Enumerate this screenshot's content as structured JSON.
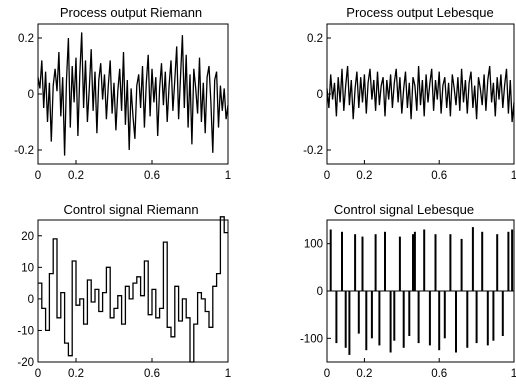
{
  "chart_data": [
    {
      "id": "process_riemann",
      "type": "line",
      "title": "Process output Riemann",
      "xlim": [
        0,
        1
      ],
      "ylim": [
        -0.25,
        0.25
      ],
      "xticks": [
        0,
        0.2,
        0.6,
        1
      ],
      "xtick_labels": [
        "0",
        "0.2",
        "0.6",
        "1"
      ],
      "yticks": [
        0.2,
        0,
        -0.2
      ],
      "ytick_labels": [
        "0.2",
        "0",
        "-0.2"
      ],
      "grid": false,
      "x": [
        0,
        0.01,
        0.02,
        0.03,
        0.04,
        0.05,
        0.06,
        0.07,
        0.08,
        0.09,
        0.1,
        0.11,
        0.12,
        0.13,
        0.14,
        0.15,
        0.16,
        0.17,
        0.18,
        0.19,
        0.2,
        0.21,
        0.22,
        0.23,
        0.24,
        0.25,
        0.26,
        0.27,
        0.28,
        0.29,
        0.3,
        0.31,
        0.32,
        0.33,
        0.34,
        0.35,
        0.36,
        0.37,
        0.38,
        0.39,
        0.4,
        0.41,
        0.42,
        0.43,
        0.44,
        0.45,
        0.46,
        0.47,
        0.48,
        0.49,
        0.5,
        0.51,
        0.52,
        0.53,
        0.54,
        0.55,
        0.56,
        0.57,
        0.58,
        0.59,
        0.6,
        0.61,
        0.62,
        0.63,
        0.64,
        0.65,
        0.66,
        0.67,
        0.68,
        0.69,
        0.7,
        0.71,
        0.72,
        0.73,
        0.74,
        0.75,
        0.76,
        0.77,
        0.78,
        0.79,
        0.8,
        0.81,
        0.82,
        0.83,
        0.84,
        0.85,
        0.86,
        0.87,
        0.88,
        0.89,
        0.9,
        0.91,
        0.92,
        0.93,
        0.94,
        0.95,
        0.96,
        0.97,
        0.98,
        0.99,
        1
      ],
      "y": [
        0.06,
        0.02,
        0.12,
        -0.05,
        0.08,
        -0.1,
        0.04,
        -0.17,
        0.03,
        0.09,
        0.01,
        0.15,
        -0.08,
        0.06,
        -0.22,
        0.05,
        0.2,
        -0.12,
        0.1,
        -0.03,
        0.13,
        -0.15,
        0.07,
        0.22,
        -0.05,
        0.12,
        -0.1,
        0.02,
        0.16,
        -0.06,
        0.08,
        -0.14,
        0.05,
        0.11,
        -0.02,
        0.07,
        -0.09,
        0.03,
        0.12,
        -0.07,
        0.04,
        -0.13,
        0.01,
        0.09,
        -0.06,
        0.15,
        -0.11,
        0.05,
        -0.2,
        0.02,
        -0.08,
        -0.16,
        0.03,
        0.07,
        -0.05,
        0.1,
        -0.12,
        0.04,
        0.14,
        -0.08,
        0.09,
        -0.03,
        0.06,
        -0.15,
        0.02,
        0.11,
        -0.04,
        0.08,
        -0.1,
        0.03,
        0.12,
        -0.06,
        0.05,
        0.17,
        -0.09,
        0.06,
        0.21,
        -0.05,
        0.14,
        -0.12,
        0.07,
        -0.18,
        0.09,
        0.02,
        -0.07,
        0.13,
        -0.1,
        0.04,
        -0.14,
        0.06,
        0.1,
        -0.03,
        -0.21,
        0.05,
        0.08,
        -0.12,
        0.03,
        -0.06,
        0.02,
        -0.09,
        -0.04
      ]
    },
    {
      "id": "process_lebesque",
      "type": "line",
      "title": "Process output Lebesque",
      "xlim": [
        0,
        1
      ],
      "ylim": [
        -0.25,
        0.25
      ],
      "xticks": [
        0,
        0.2,
        0.6,
        1
      ],
      "xtick_labels": [
        "0",
        "0.2",
        "0.6",
        "1"
      ],
      "yticks": [
        0.2,
        0,
        -0.2
      ],
      "ytick_labels": [
        "0.2",
        "0",
        "-0.2"
      ],
      "grid": false,
      "x": [
        0,
        0.01,
        0.02,
        0.03,
        0.04,
        0.05,
        0.06,
        0.07,
        0.08,
        0.09,
        0.1,
        0.11,
        0.12,
        0.13,
        0.14,
        0.15,
        0.16,
        0.17,
        0.18,
        0.19,
        0.2,
        0.21,
        0.22,
        0.23,
        0.24,
        0.25,
        0.26,
        0.27,
        0.28,
        0.29,
        0.3,
        0.31,
        0.32,
        0.33,
        0.34,
        0.35,
        0.36,
        0.37,
        0.38,
        0.39,
        0.4,
        0.41,
        0.42,
        0.43,
        0.44,
        0.45,
        0.46,
        0.47,
        0.48,
        0.49,
        0.5,
        0.51,
        0.52,
        0.53,
        0.54,
        0.55,
        0.56,
        0.57,
        0.58,
        0.59,
        0.6,
        0.61,
        0.62,
        0.63,
        0.64,
        0.65,
        0.66,
        0.67,
        0.68,
        0.69,
        0.7,
        0.71,
        0.72,
        0.73,
        0.74,
        0.75,
        0.76,
        0.77,
        0.78,
        0.79,
        0.8,
        0.81,
        0.82,
        0.83,
        0.84,
        0.85,
        0.86,
        0.87,
        0.88,
        0.89,
        0.9,
        0.91,
        0.92,
        0.93,
        0.94,
        0.95,
        0.96,
        0.97,
        0.98,
        0.99,
        1
      ],
      "y": [
        0.02,
        -0.05,
        0.07,
        -0.02,
        0.04,
        -0.08,
        0.06,
        -0.03,
        0.09,
        -0.06,
        0.03,
        0.1,
        -0.04,
        0.05,
        -0.09,
        0.02,
        0.08,
        -0.05,
        0.06,
        -0.03,
        0.07,
        -0.07,
        0.04,
        0.09,
        -0.02,
        0.05,
        -0.06,
        0.08,
        -0.04,
        0.03,
        0.06,
        -0.08,
        0.05,
        -0.02,
        0.07,
        -0.05,
        0.04,
        0.09,
        -0.03,
        0.06,
        -0.07,
        0.02,
        0.08,
        -0.05,
        0.04,
        -0.09,
        0.06,
        0.03,
        -0.06,
        0.1,
        -0.04,
        0.05,
        -0.08,
        0.07,
        -0.03,
        0.04,
        0.09,
        -0.06,
        0.05,
        -0.02,
        0.08,
        -0.07,
        0.03,
        0.06,
        -0.05,
        0.04,
        -0.08,
        0.07,
        0.02,
        -0.04,
        0.06,
        -0.06,
        0.09,
        -0.03,
        0.05,
        -0.07,
        0.04,
        0.08,
        -0.05,
        0.03,
        -0.09,
        0.06,
        0.02,
        -0.04,
        0.07,
        -0.06,
        0.05,
        0.1,
        -0.03,
        0.04,
        -0.08,
        0.06,
        -0.02,
        0.07,
        -0.05,
        0.03,
        0.09,
        -0.07,
        0.05,
        -0.1,
        -0.03
      ]
    },
    {
      "id": "control_riemann",
      "type": "line",
      "title": "Control signal Riemann",
      "xlim": [
        0,
        1
      ],
      "ylim": [
        -20,
        25
      ],
      "xticks": [
        0,
        0.2,
        0.6,
        1
      ],
      "xtick_labels": [
        "0",
        "0.2",
        "0.6",
        "1"
      ],
      "yticks": [
        20,
        10,
        0,
        -10,
        -20
      ],
      "ytick_labels": [
        "20",
        "10",
        "0",
        "-10",
        "-20"
      ],
      "grid": false,
      "x": [
        0,
        0.02,
        0.04,
        0.06,
        0.08,
        0.1,
        0.12,
        0.14,
        0.16,
        0.18,
        0.2,
        0.22,
        0.24,
        0.26,
        0.28,
        0.3,
        0.32,
        0.34,
        0.36,
        0.38,
        0.4,
        0.42,
        0.44,
        0.46,
        0.48,
        0.5,
        0.52,
        0.54,
        0.56,
        0.58,
        0.6,
        0.62,
        0.64,
        0.66,
        0.68,
        0.7,
        0.72,
        0.74,
        0.76,
        0.78,
        0.8,
        0.82,
        0.84,
        0.86,
        0.88,
        0.9,
        0.92,
        0.94,
        0.96,
        0.98
      ],
      "y": [
        5,
        -3,
        -10,
        8,
        19,
        -6,
        2,
        -14,
        -18,
        12,
        -2,
        0,
        -8,
        6,
        -1,
        3,
        -4,
        2,
        10,
        -6,
        -3,
        1,
        -8,
        4,
        0,
        5,
        7,
        1,
        12,
        -5,
        3,
        -6,
        -3,
        18,
        -9,
        -12,
        4,
        -7,
        0,
        -6,
        -20,
        -8,
        2,
        0,
        -4,
        -9,
        4,
        8,
        26,
        21
      ]
    },
    {
      "id": "control_lebesque",
      "type": "bar",
      "title": "Control signal Lebesque",
      "xlim": [
        0,
        1
      ],
      "ylim": [
        -150,
        150
      ],
      "xticks": [
        0,
        0.2,
        0.6,
        1
      ],
      "xtick_labels": [
        "0",
        "0.2",
        "0.6",
        "1"
      ],
      "yticks": [
        100,
        0,
        -100
      ],
      "ytick_labels": [
        "100",
        "0",
        "-100"
      ],
      "grid": false,
      "x": [
        0.02,
        0.05,
        0.08,
        0.1,
        0.12,
        0.15,
        0.17,
        0.19,
        0.21,
        0.24,
        0.26,
        0.28,
        0.31,
        0.34,
        0.36,
        0.39,
        0.41,
        0.44,
        0.46,
        0.47,
        0.49,
        0.52,
        0.55,
        0.58,
        0.6,
        0.63,
        0.66,
        0.69,
        0.72,
        0.75,
        0.78,
        0.8,
        0.83,
        0.86,
        0.89,
        0.91,
        0.94,
        0.97,
        0.99
      ],
      "y": [
        130,
        -110,
        125,
        -120,
        -135,
        120,
        -90,
        115,
        -125,
        -100,
        120,
        -115,
        125,
        -130,
        -105,
        115,
        -120,
        -95,
        120,
        125,
        -110,
        130,
        -115,
        120,
        -125,
        -100,
        120,
        -130,
        110,
        -120,
        135,
        -110,
        125,
        -115,
        -105,
        120,
        -95,
        125,
        130
      ]
    }
  ]
}
